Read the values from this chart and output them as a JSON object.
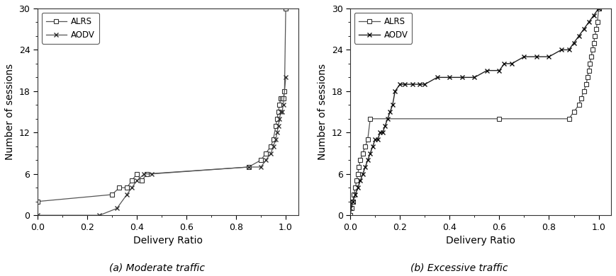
{
  "moderate_alrs_x": [
    0.0,
    0.3,
    0.33,
    0.36,
    0.38,
    0.4,
    0.42,
    0.44,
    0.85,
    0.9,
    0.92,
    0.94,
    0.95,
    0.96,
    0.965,
    0.97,
    0.975,
    0.98,
    0.985,
    0.99,
    0.995,
    1.0
  ],
  "moderate_alrs_y": [
    2,
    3,
    4,
    4,
    5,
    6,
    5,
    6,
    7,
    8,
    9,
    10,
    11,
    13,
    14,
    15,
    16,
    17,
    17,
    17,
    18,
    30
  ],
  "moderate_aodv_x": [
    0.0,
    0.25,
    0.32,
    0.36,
    0.38,
    0.4,
    0.43,
    0.46,
    0.85,
    0.9,
    0.92,
    0.94,
    0.95,
    0.96,
    0.965,
    0.97,
    0.975,
    0.98,
    0.985,
    0.99,
    1.0
  ],
  "moderate_aodv_y": [
    0,
    0,
    1,
    3,
    4,
    5,
    6,
    6,
    7,
    7,
    8,
    9,
    10,
    11,
    12,
    13,
    14,
    15,
    15,
    16,
    20
  ],
  "excessive_alrs_x": [
    0.0,
    0.005,
    0.01,
    0.015,
    0.02,
    0.025,
    0.03,
    0.035,
    0.04,
    0.05,
    0.06,
    0.07,
    0.08,
    0.6,
    0.88,
    0.9,
    0.92,
    0.93,
    0.94,
    0.95,
    0.955,
    0.96,
    0.965,
    0.97,
    0.975,
    0.98,
    0.985,
    0.99,
    0.995,
    1.0
  ],
  "excessive_alrs_y": [
    0,
    1,
    2,
    3,
    4,
    5,
    6,
    7,
    8,
    9,
    10,
    11,
    14,
    14,
    14,
    15,
    16,
    17,
    18,
    19,
    20,
    21,
    22,
    23,
    24,
    25,
    26,
    27,
    28,
    30
  ],
  "excessive_aodv_x": [
    0.0,
    0.01,
    0.02,
    0.03,
    0.04,
    0.05,
    0.06,
    0.07,
    0.08,
    0.09,
    0.1,
    0.11,
    0.12,
    0.13,
    0.14,
    0.15,
    0.16,
    0.17,
    0.18,
    0.2,
    0.22,
    0.25,
    0.28,
    0.3,
    0.35,
    0.4,
    0.45,
    0.5,
    0.55,
    0.6,
    0.62,
    0.65,
    0.7,
    0.75,
    0.8,
    0.85,
    0.88,
    0.9,
    0.92,
    0.94,
    0.96,
    0.98,
    1.0
  ],
  "excessive_aodv_y": [
    1,
    2,
    3,
    4,
    5,
    6,
    7,
    8,
    9,
    10,
    11,
    11,
    12,
    12,
    13,
    14,
    15,
    16,
    18,
    19,
    19,
    19,
    19,
    19,
    20,
    20,
    20,
    20,
    21,
    21,
    22,
    22,
    23,
    23,
    23,
    24,
    24,
    25,
    26,
    27,
    28,
    29,
    30
  ],
  "xlabel": "Delivery Ratio",
  "ylabel": "Number of sessions",
  "label_a": "(a) Moderate traffic",
  "label_b": "(b) Excessive traffic",
  "ylim": [
    0,
    30
  ],
  "xlim": [
    0,
    1.05
  ],
  "yticks": [
    0,
    6,
    12,
    18,
    24,
    30
  ],
  "xticks": [
    0.0,
    0.2,
    0.4,
    0.6,
    0.8,
    1.0
  ],
  "legend_labels": [
    "ALRS",
    "AODV"
  ]
}
